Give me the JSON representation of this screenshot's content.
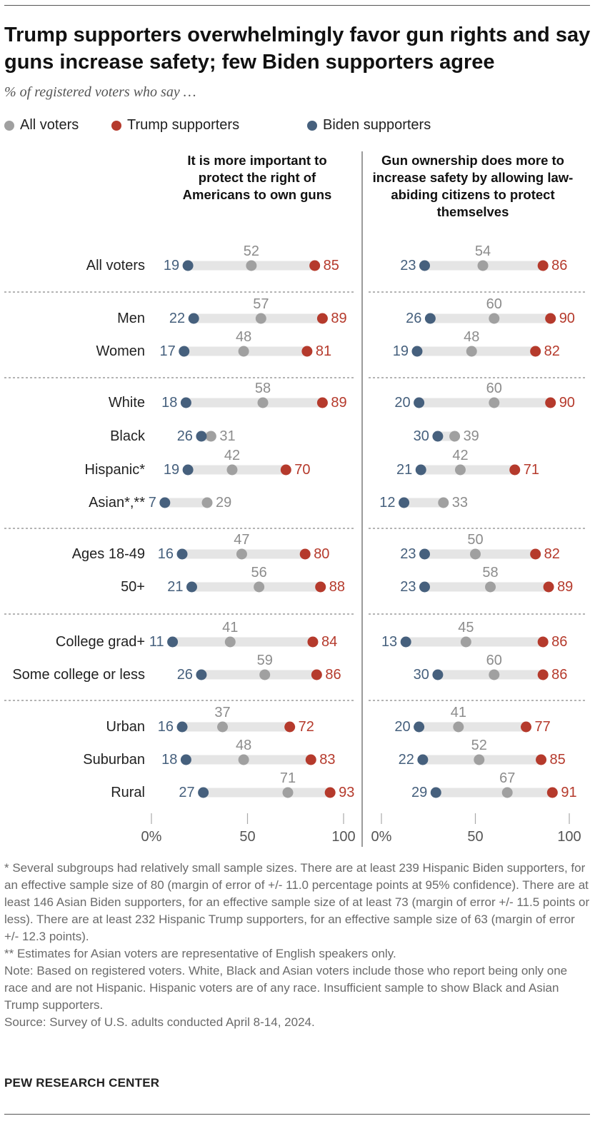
{
  "title": "Trump supporters overwhelmingly favor gun rights and say guns increase safety; few Biden supporters agree",
  "subtitle": "% of registered voters who say …",
  "legend": [
    {
      "name": "All voters",
      "color": "#a0a0a0"
    },
    {
      "name": "Trump supporters",
      "color": "#b53a2c"
    },
    {
      "name": "Biden supporters",
      "color": "#46607d"
    }
  ],
  "colors": {
    "all": "#a0a0a0",
    "trump": "#b53a2c",
    "biden": "#46607d",
    "track": "#e5e5e5",
    "all_label": "#8c8c8c"
  },
  "chart_data": {
    "type": "dot",
    "panels": [
      {
        "title": "It is more important to protect the right of Americans to own guns",
        "xlim": [
          0,
          100
        ],
        "xticks": [
          "0%",
          "50",
          "100"
        ]
      },
      {
        "title": "Gun ownership does more to increase safety by allowing law-abiding citizens to protect themselves",
        "xlim": [
          0,
          100
        ],
        "xticks": [
          "0%",
          "50",
          "100"
        ]
      }
    ],
    "rows": [
      {
        "label": "All voters",
        "values": [
          {
            "biden": 19,
            "all": 52,
            "trump": 85
          },
          {
            "biden": 23,
            "all": 54,
            "trump": 86
          }
        ]
      },
      {
        "label": "Men",
        "values": [
          {
            "biden": 22,
            "all": 57,
            "trump": 89
          },
          {
            "biden": 26,
            "all": 60,
            "trump": 90
          }
        ]
      },
      {
        "label": "Women",
        "values": [
          {
            "biden": 17,
            "all": 48,
            "trump": 81
          },
          {
            "biden": 19,
            "all": 48,
            "trump": 82
          }
        ]
      },
      {
        "label": "White",
        "values": [
          {
            "biden": 18,
            "all": 58,
            "trump": 89
          },
          {
            "biden": 20,
            "all": 60,
            "trump": 90
          }
        ]
      },
      {
        "label": "Black",
        "values": [
          {
            "biden": 26,
            "all": 31,
            "trump": null
          },
          {
            "biden": 30,
            "all": 39,
            "trump": null
          }
        ]
      },
      {
        "label": "Hispanic*",
        "values": [
          {
            "biden": 19,
            "all": 42,
            "trump": 70
          },
          {
            "biden": 21,
            "all": 42,
            "trump": 71
          }
        ]
      },
      {
        "label": "Asian*,**",
        "values": [
          {
            "biden": 7,
            "all": 29,
            "trump": null
          },
          {
            "biden": 12,
            "all": 33,
            "trump": null
          }
        ]
      },
      {
        "label": "Ages 18-49",
        "values": [
          {
            "biden": 16,
            "all": 47,
            "trump": 80
          },
          {
            "biden": 23,
            "all": 50,
            "trump": 82
          }
        ]
      },
      {
        "label": "50+",
        "values": [
          {
            "biden": 21,
            "all": 56,
            "trump": 88
          },
          {
            "biden": 23,
            "all": 58,
            "trump": 89
          }
        ]
      },
      {
        "label": "College grad+",
        "values": [
          {
            "biden": 11,
            "all": 41,
            "trump": 84
          },
          {
            "biden": 13,
            "all": 45,
            "trump": 86
          }
        ]
      },
      {
        "label": "Some college or less",
        "values": [
          {
            "biden": 26,
            "all": 59,
            "trump": 86
          },
          {
            "biden": 30,
            "all": 60,
            "trump": 86
          }
        ]
      },
      {
        "label": "Urban",
        "values": [
          {
            "biden": 16,
            "all": 37,
            "trump": 72
          },
          {
            "biden": 20,
            "all": 41,
            "trump": 77
          }
        ]
      },
      {
        "label": "Suburban",
        "values": [
          {
            "biden": 18,
            "all": 48,
            "trump": 83
          },
          {
            "biden": 22,
            "all": 52,
            "trump": 85
          }
        ]
      },
      {
        "label": "Rural",
        "values": [
          {
            "biden": 27,
            "all": 71,
            "trump": 93
          },
          {
            "biden": 29,
            "all": 67,
            "trump": 91
          }
        ]
      }
    ]
  },
  "notes": [
    "* Several subgroups had relatively small sample sizes. There are at least 239 Hispanic Biden supporters, for an effective sample size of 80 (margin of error of +/- 11.0 percentage points at 95% confidence). There are at least 146 Asian Biden supporters, for an effective sample size of at least 73 (margin of error +/- 11.5 points or less). There are at least 232 Hispanic Trump supporters, for an effective sample size of 63 (margin of error +/- 12.3 points).",
    "** Estimates for Asian voters are representative of English speakers only.",
    "Note: Based on registered voters. White, Black and Asian voters include those who report being only one race and are not Hispanic. Hispanic voters are of any race. Insufficient sample to show Black and Asian Trump supporters.",
    "Source: Survey of U.S. adults conducted April 8-14, 2024."
  ],
  "brand": "PEW RESEARCH CENTER"
}
